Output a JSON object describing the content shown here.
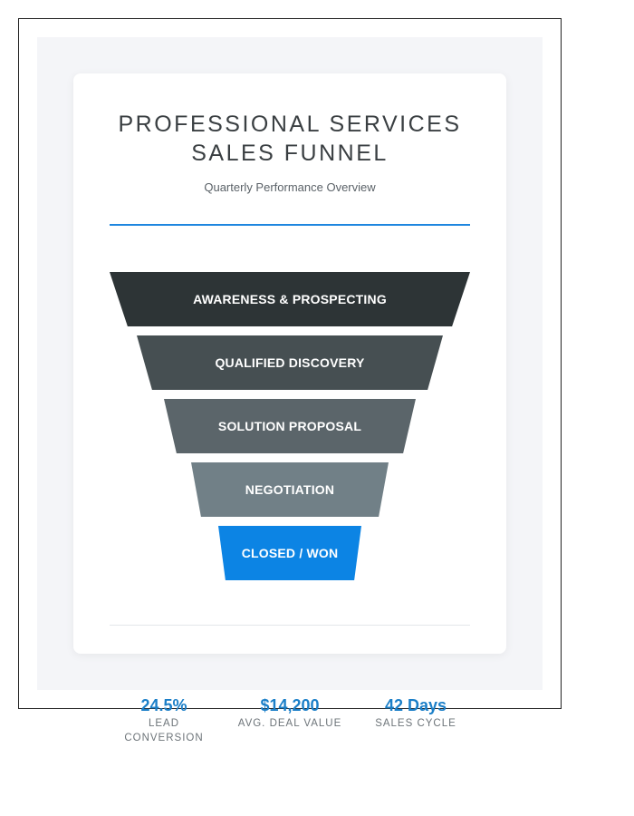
{
  "header": {
    "title": "PROFESSIONAL SERVICES SALES FUNNEL",
    "subtitle": "Quarterly Performance Overview"
  },
  "funnel": {
    "stages": [
      {
        "label": "AWARENESS & PROSPECTING",
        "color": "#2d3436"
      },
      {
        "label": "QUALIFIED DISCOVERY",
        "color": "#464f52"
      },
      {
        "label": "SOLUTION PROPOSAL",
        "color": "#5b656a"
      },
      {
        "label": "NEGOTIATION",
        "color": "#718087"
      },
      {
        "label": "CLOSED / WON",
        "color": "#0c84e4"
      }
    ]
  },
  "metrics": [
    {
      "value": "24.5%",
      "label": "LEAD CONVERSION"
    },
    {
      "value": "$14,200",
      "label": "AVG. DEAL VALUE"
    },
    {
      "value": "42 Days",
      "label": "SALES CYCLE"
    }
  ],
  "colors": {
    "accent": "#1e86df",
    "metric_value": "#1b7fc8",
    "background": "#f4f5f8"
  }
}
